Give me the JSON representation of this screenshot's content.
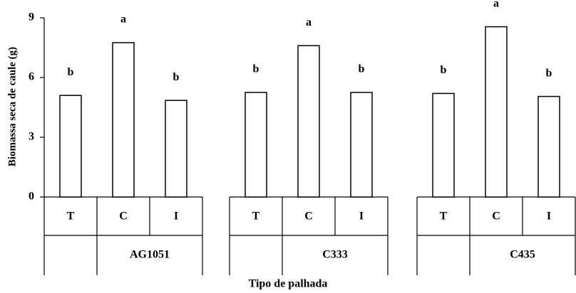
{
  "chart_data": {
    "type": "bar",
    "ylabel": "Biomassa seca de caule (g)",
    "xlabel": "Tipo de palhada",
    "categories": [
      "T",
      "C",
      "I"
    ],
    "series": [
      {
        "name": "AG1051",
        "color": "#ffffff",
        "values": [
          5.1,
          7.75,
          4.85
        ],
        "annotations": [
          "b",
          "a",
          "b"
        ]
      },
      {
        "name": "C333",
        "color": "#ffffff",
        "values": [
          5.25,
          7.6,
          5.25
        ],
        "annotations": [
          "b",
          "a",
          "b"
        ]
      },
      {
        "name": "C435",
        "color": "#ffffff",
        "values": [
          5.2,
          8.55,
          5.05
        ],
        "annotations": [
          "b",
          "a",
          "b"
        ]
      }
    ],
    "ylim": [
      0,
      9
    ],
    "yticks": [
      0,
      3,
      6,
      9
    ]
  }
}
